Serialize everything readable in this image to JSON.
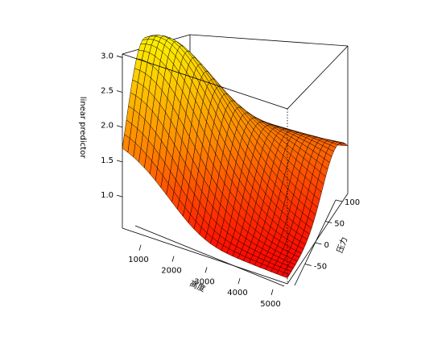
{
  "chart_data": {
    "type": "surface3d",
    "title": "",
    "xlabel": "高度",
    "ylabel": "压力",
    "zlabel": "linear predictor",
    "x_ticks": [
      1000,
      2000,
      3000,
      4000,
      5000
    ],
    "y_ticks": [
      -50,
      0,
      50,
      100
    ],
    "z_ticks": [
      "1.0",
      "1.5",
      "2.0",
      "2.5",
      "3.0"
    ],
    "xlim": [
      0,
      5000
    ],
    "ylim": [
      -100,
      100
    ],
    "zlim": [
      0.55,
      3.05
    ],
    "grid_size": 30,
    "surface_peak": 3.05,
    "surface_min": 0.58,
    "colorscale": [
      "#ff0000",
      "#ff8c00",
      "#ffff00"
    ]
  }
}
